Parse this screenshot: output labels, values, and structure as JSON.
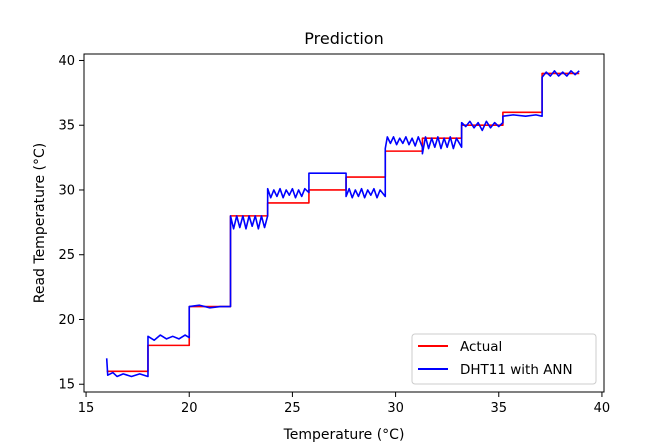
{
  "chart_data": {
    "type": "line",
    "title": "Prediction",
    "xlabel": "Temperature (°C)",
    "ylabel": "Read Temperature (°C)",
    "xlim": [
      14.9,
      40.1
    ],
    "ylim": [
      14.4,
      40.5
    ],
    "x_ticks": [
      "15",
      "20",
      "25",
      "30",
      "35",
      "40"
    ],
    "y_ticks": [
      "15",
      "20",
      "25",
      "30",
      "35",
      "40"
    ],
    "grid": false,
    "legend_position": "lower-right",
    "series": [
      {
        "name": "Actual",
        "color": "#ff0000",
        "points": [
          [
            16,
            16
          ],
          [
            18,
            16
          ],
          [
            18,
            18
          ],
          [
            20,
            18
          ],
          [
            20,
            21
          ],
          [
            22,
            21
          ],
          [
            22,
            28
          ],
          [
            23.8,
            28
          ],
          [
            23.8,
            29
          ],
          [
            25.8,
            29
          ],
          [
            25.8,
            30
          ],
          [
            27.6,
            30
          ],
          [
            27.6,
            31
          ],
          [
            29.5,
            31
          ],
          [
            29.5,
            33
          ],
          [
            31.3,
            33
          ],
          [
            31.3,
            34
          ],
          [
            33.2,
            34
          ],
          [
            33.2,
            35
          ],
          [
            35.2,
            35
          ],
          [
            35.2,
            36
          ],
          [
            37.1,
            36
          ],
          [
            37.1,
            39
          ],
          [
            38.9,
            39
          ]
        ]
      },
      {
        "name": "DHT11 with ANN",
        "color": "#0000ff",
        "points": [
          [
            16.0,
            17.0
          ],
          [
            16.05,
            15.7
          ],
          [
            16.3,
            15.9
          ],
          [
            16.5,
            15.6
          ],
          [
            16.8,
            15.8
          ],
          [
            17.2,
            15.6
          ],
          [
            17.6,
            15.8
          ],
          [
            18.0,
            15.6
          ],
          [
            18.0,
            18.7
          ],
          [
            18.3,
            18.4
          ],
          [
            18.6,
            18.8
          ],
          [
            18.9,
            18.5
          ],
          [
            19.2,
            18.7
          ],
          [
            19.5,
            18.5
          ],
          [
            19.8,
            18.8
          ],
          [
            20.0,
            18.6
          ],
          [
            20.0,
            21.0
          ],
          [
            20.5,
            21.1
          ],
          [
            21.0,
            20.9
          ],
          [
            21.5,
            21.0
          ],
          [
            22.0,
            21.0
          ],
          [
            22.0,
            28.0
          ],
          [
            22.15,
            27.0
          ],
          [
            22.3,
            28.0
          ],
          [
            22.45,
            27.1
          ],
          [
            22.6,
            28.0
          ],
          [
            22.75,
            27.0
          ],
          [
            22.9,
            28.0
          ],
          [
            23.05,
            27.2
          ],
          [
            23.2,
            28.0
          ],
          [
            23.35,
            27.0
          ],
          [
            23.5,
            28.0
          ],
          [
            23.65,
            27.1
          ],
          [
            23.8,
            28.0
          ],
          [
            23.8,
            30.1
          ],
          [
            23.95,
            29.4
          ],
          [
            24.1,
            30.0
          ],
          [
            24.25,
            29.5
          ],
          [
            24.4,
            30.1
          ],
          [
            24.55,
            29.4
          ],
          [
            24.7,
            30.0
          ],
          [
            24.85,
            29.6
          ],
          [
            25.0,
            30.1
          ],
          [
            25.15,
            29.4
          ],
          [
            25.3,
            30.0
          ],
          [
            25.45,
            29.5
          ],
          [
            25.6,
            30.1
          ],
          [
            25.8,
            29.8
          ],
          [
            25.8,
            31.3
          ],
          [
            26.5,
            31.3
          ],
          [
            27.2,
            31.3
          ],
          [
            27.6,
            31.3
          ],
          [
            27.6,
            29.5
          ],
          [
            27.75,
            30.1
          ],
          [
            27.9,
            29.4
          ],
          [
            28.05,
            30.0
          ],
          [
            28.2,
            29.5
          ],
          [
            28.35,
            30.1
          ],
          [
            28.5,
            29.4
          ],
          [
            28.65,
            30.0
          ],
          [
            28.8,
            29.6
          ],
          [
            28.95,
            30.1
          ],
          [
            29.1,
            29.4
          ],
          [
            29.25,
            30.0
          ],
          [
            29.5,
            29.5
          ],
          [
            29.5,
            33.2
          ],
          [
            29.6,
            34.1
          ],
          [
            29.75,
            33.6
          ],
          [
            29.9,
            34.1
          ],
          [
            30.05,
            33.5
          ],
          [
            30.2,
            34.0
          ],
          [
            30.35,
            33.6
          ],
          [
            30.5,
            34.1
          ],
          [
            30.65,
            33.5
          ],
          [
            30.8,
            34.0
          ],
          [
            30.95,
            33.4
          ],
          [
            31.1,
            34.1
          ],
          [
            31.3,
            33.3
          ],
          [
            31.3,
            32.8
          ],
          [
            31.45,
            34.1
          ],
          [
            31.6,
            33.2
          ],
          [
            31.75,
            34.0
          ],
          [
            31.9,
            33.3
          ],
          [
            32.05,
            34.1
          ],
          [
            32.2,
            33.2
          ],
          [
            32.35,
            34.0
          ],
          [
            32.5,
            33.3
          ],
          [
            32.65,
            34.1
          ],
          [
            32.8,
            33.2
          ],
          [
            32.95,
            34.0
          ],
          [
            33.2,
            33.3
          ],
          [
            33.2,
            35.2
          ],
          [
            33.4,
            34.9
          ],
          [
            33.6,
            35.3
          ],
          [
            33.8,
            34.8
          ],
          [
            34.0,
            35.2
          ],
          [
            34.2,
            34.6
          ],
          [
            34.4,
            35.3
          ],
          [
            34.6,
            34.8
          ],
          [
            34.8,
            35.2
          ],
          [
            35.0,
            34.9
          ],
          [
            35.2,
            35.2
          ],
          [
            35.2,
            35.7
          ],
          [
            35.7,
            35.8
          ],
          [
            36.3,
            35.7
          ],
          [
            36.8,
            35.8
          ],
          [
            37.1,
            35.7
          ],
          [
            37.1,
            38.7
          ],
          [
            37.3,
            39.1
          ],
          [
            37.5,
            38.8
          ],
          [
            37.7,
            39.2
          ],
          [
            37.9,
            38.8
          ],
          [
            38.1,
            39.1
          ],
          [
            38.3,
            38.8
          ],
          [
            38.5,
            39.2
          ],
          [
            38.7,
            38.9
          ],
          [
            38.9,
            39.2
          ]
        ]
      }
    ]
  }
}
